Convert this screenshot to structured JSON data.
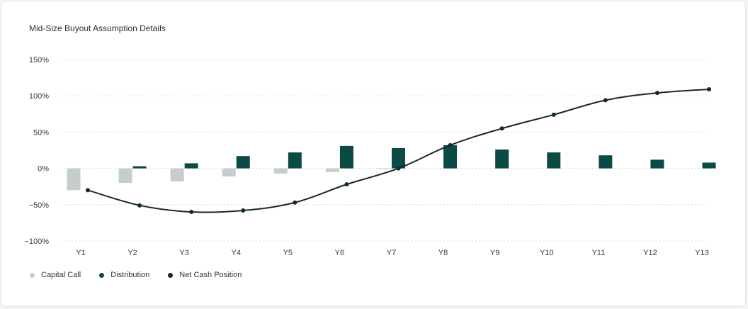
{
  "colors": {
    "capital_call": "#c4cecd",
    "distribution": "#0b4a45",
    "net_cash": "#172a28",
    "grid": "#d7dbdb"
  },
  "chart_data": {
    "type": "bar",
    "title": "Mid-Size Buyout Assumption Details",
    "categories": [
      "Y1",
      "Y2",
      "Y3",
      "Y4",
      "Y5",
      "Y6",
      "Y7",
      "Y8",
      "Y9",
      "Y10",
      "Y11",
      "Y12",
      "Y13"
    ],
    "ylim": [
      -100,
      150
    ],
    "yticks": [
      150,
      100,
      50,
      0,
      -50,
      -100
    ],
    "ytick_labels": [
      "150%",
      "100%",
      "50%",
      "0%",
      "−50%",
      "−100%"
    ],
    "grid": true,
    "legend_position": "bottom-left",
    "series": [
      {
        "name": "Capital Call",
        "type": "bar",
        "values": [
          -30,
          -20,
          -18,
          -11,
          -7,
          -5,
          -1,
          0,
          0,
          0,
          0,
          0,
          0
        ]
      },
      {
        "name": "Distribution",
        "type": "bar",
        "values": [
          0,
          3,
          7,
          17,
          22,
          31,
          28,
          32,
          26,
          22,
          18,
          12,
          8
        ]
      },
      {
        "name": "Net Cash Position",
        "type": "line",
        "values": [
          -30,
          -51,
          -60,
          -58,
          -47,
          -22,
          0,
          32,
          55,
          74,
          94,
          104,
          109
        ]
      }
    ]
  },
  "legend": [
    {
      "label": "Capital Call",
      "color": "#c4cecd"
    },
    {
      "label": "Distribution",
      "color": "#0b4a45"
    },
    {
      "label": "Net Cash Position",
      "color": "#172a28"
    }
  ]
}
